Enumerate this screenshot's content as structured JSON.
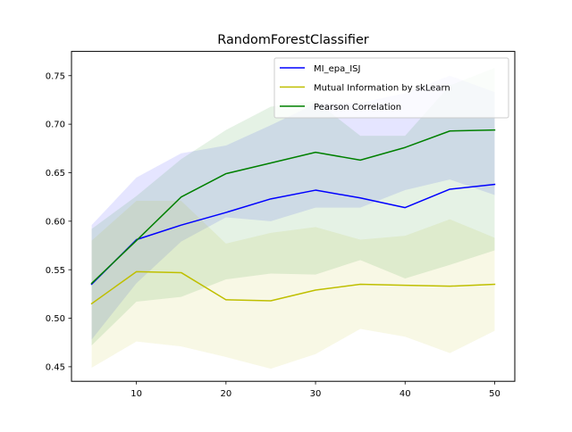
{
  "chart_data": {
    "type": "line",
    "title": "RandomForestClassifier",
    "xlabel": "",
    "ylabel": "",
    "x": [
      5,
      10,
      15,
      20,
      25,
      30,
      35,
      40,
      45,
      50
    ],
    "xlim": [
      2.75,
      52.25
    ],
    "ylim": [
      0.435,
      0.775
    ],
    "xticks": [
      10,
      20,
      30,
      40,
      50
    ],
    "yticks": [
      0.45,
      0.5,
      0.55,
      0.6,
      0.65,
      0.7,
      0.75
    ],
    "ytick_labels": [
      "0.45",
      "0.50",
      "0.55",
      "0.60",
      "0.65",
      "0.70",
      "0.75"
    ],
    "grid": false,
    "legend_position": "top-right",
    "series": [
      {
        "name": "MI_epa_ISJ",
        "color": "#0000ff",
        "values": [
          0.535,
          0.581,
          0.596,
          0.609,
          0.623,
          0.632,
          0.624,
          0.614,
          0.633,
          0.638
        ],
        "lower": [
          0.478,
          0.536,
          0.579,
          0.604,
          0.6,
          0.614,
          0.614,
          0.632,
          0.643,
          0.627
        ],
        "upper": [
          0.596,
          0.645,
          0.67,
          0.678,
          0.699,
          0.721,
          0.722,
          0.732,
          0.75,
          0.733
        ]
      },
      {
        "name": "Mutual Information by skLearn",
        "color": "#bfbf00",
        "values": [
          0.515,
          0.548,
          0.547,
          0.519,
          0.518,
          0.529,
          0.535,
          0.534,
          0.533,
          0.535
        ],
        "lower": [
          0.449,
          0.476,
          0.471,
          0.46,
          0.448,
          0.463,
          0.489,
          0.481,
          0.464,
          0.487
        ],
        "upper": [
          0.58,
          0.621,
          0.621,
          0.577,
          0.588,
          0.594,
          0.581,
          0.585,
          0.602,
          0.583
        ]
      },
      {
        "name": "Pearson Correlation",
        "color": "#008000",
        "values": [
          0.536,
          0.58,
          0.625,
          0.649,
          0.66,
          0.671,
          0.663,
          0.676,
          0.693,
          0.694
        ],
        "lower": [
          0.472,
          0.517,
          0.522,
          0.54,
          0.546,
          0.545,
          0.56,
          0.541,
          0.555,
          0.57
        ],
        "upper": [
          0.592,
          0.626,
          0.664,
          0.694,
          0.718,
          0.724,
          0.688,
          0.688,
          0.74,
          0.758
        ]
      }
    ]
  }
}
